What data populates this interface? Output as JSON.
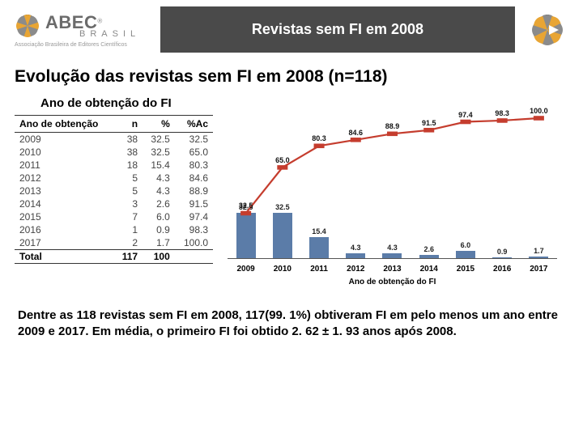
{
  "header": {
    "title": "Revistas sem FI em 2008",
    "logo_main": "ABEC",
    "logo_brasil": "BRASIL",
    "logo_sub": "Associação Brasileira de Editores Científicos",
    "logo_reg": "®",
    "logo_icon_color_a": "#e8a534",
    "logo_icon_color_b": "#8b8b8b",
    "title_bg": "#4a4a4a",
    "title_fg": "#ffffff"
  },
  "main_title": "Evolução das revistas sem FI em 2008 (n=118)",
  "subtitle": "Ano de obtenção do FI",
  "table": {
    "columns": [
      "Ano de obtenção",
      "n",
      "%",
      "%Ac"
    ],
    "rows": [
      [
        "2009",
        "38",
        "32.5",
        "32.5"
      ],
      [
        "2010",
        "38",
        "32.5",
        "65.0"
      ],
      [
        "2011",
        "18",
        "15.4",
        "80.3"
      ],
      [
        "2012",
        "5",
        "4.3",
        "84.6"
      ],
      [
        "2013",
        "5",
        "4.3",
        "88.9"
      ],
      [
        "2014",
        "3",
        "2.6",
        "91.5"
      ],
      [
        "2015",
        "7",
        "6.0",
        "97.4"
      ],
      [
        "2016",
        "1",
        "0.9",
        "98.3"
      ],
      [
        "2017",
        "2",
        "1.7",
        "100.0"
      ]
    ],
    "total": [
      "Total",
      "117",
      "100",
      ""
    ]
  },
  "chart": {
    "type": "bar+line",
    "categories": [
      "2009",
      "2010",
      "2011",
      "2012",
      "2013",
      "2014",
      "2015",
      "2016",
      "2017"
    ],
    "bars": {
      "values": [
        32.5,
        32.5,
        15.4,
        4.3,
        4.3,
        2.6,
        6.0,
        0.9,
        1.7
      ],
      "labels": [
        "32.5",
        "32.5",
        "15.4",
        "4.3",
        "4.3",
        "2.6",
        "6.0",
        "0.9",
        "1.7"
      ],
      "color": "#5b7ca8",
      "ymax": 100
    },
    "line": {
      "values": [
        32.5,
        65.0,
        80.3,
        84.6,
        88.9,
        91.5,
        97.4,
        98.3,
        100.0
      ],
      "labels": [
        "32.5",
        "65.0",
        "80.3",
        "84.6",
        "88.9",
        "91.5",
        "97.4",
        "98.3",
        "100.0"
      ],
      "color": "#c53d2e",
      "marker": "square",
      "marker_size": 7,
      "line_width": 2.2,
      "ymax": 100
    },
    "x_label": "Ano de obtenção do FI",
    "tick_fontsize": 10,
    "label_fontsize": 9,
    "background": "#ffffff"
  },
  "bottom_text": "Dentre as 118 revistas sem FI em 2008, 117(99. 1%) obtiveram FI em pelo menos um ano entre 2009 e 2017. Em média, o primeiro FI foi obtido 2. 62 ± 1. 93 anos após 2008."
}
